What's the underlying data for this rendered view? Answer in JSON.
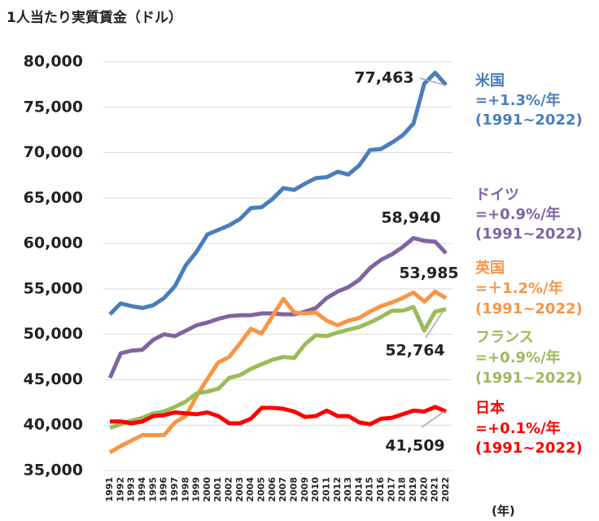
{
  "chart_data": {
    "type": "line",
    "title": "1人当たり実質賃金（ドル）",
    "x_unit": "(年)",
    "categories": [
      "1991",
      "1992",
      "1993",
      "1994",
      "1995",
      "1996",
      "1997",
      "1998",
      "1999",
      "2000",
      "2001",
      "2002",
      "2003",
      "2004",
      "2005",
      "2006",
      "2007",
      "2008",
      "2009",
      "2010",
      "2011",
      "2012",
      "2013",
      "2014",
      "2015",
      "2016",
      "2017",
      "2018",
      "2019",
      "2020",
      "2021",
      "2022"
    ],
    "ylim": [
      35000,
      80000
    ],
    "yticks": [
      {
        "value": 35000,
        "label": "35,000"
      },
      {
        "value": 40000,
        "label": "40,000"
      },
      {
        "value": 45000,
        "label": "45,000"
      },
      {
        "value": 50000,
        "label": "50,000"
      },
      {
        "value": 55000,
        "label": "55,000"
      },
      {
        "value": 60000,
        "label": "60,000"
      },
      {
        "value": 65000,
        "label": "65,000"
      },
      {
        "value": 70000,
        "label": "70,000"
      },
      {
        "value": 75000,
        "label": "75,000"
      },
      {
        "value": 80000,
        "label": "80,000"
      }
    ],
    "grid": true,
    "series": [
      {
        "name": "米国",
        "rate": "=+1.3%/年",
        "period": "(1991~2022)",
        "color": "#4a7ebb",
        "values": [
          52200,
          53400,
          53100,
          52900,
          53200,
          54000,
          55300,
          57600,
          59100,
          61000,
          61500,
          62000,
          62700,
          63900,
          64000,
          64900,
          66100,
          65900,
          66600,
          67200,
          67300,
          67900,
          67600,
          68600,
          70300,
          70400,
          71100,
          71900,
          73200,
          77600,
          78800,
          77463
        ],
        "value_labels": [
          null,
          null,
          null,
          null,
          null,
          null,
          null,
          null,
          null,
          null,
          null,
          null,
          null,
          null,
          null,
          null,
          null,
          null,
          null,
          null,
          null,
          null,
          null,
          null,
          null,
          null,
          null,
          null,
          null,
          null,
          null,
          "77,463"
        ]
      },
      {
        "name": "ドイツ",
        "rate": "=+0.9%/年",
        "period": "(1991~2022)",
        "color": "#8064a2",
        "values": [
          45200,
          47900,
          48200,
          48300,
          49400,
          50000,
          49800,
          50400,
          51000,
          51300,
          51700,
          52000,
          52100,
          52100,
          52300,
          52300,
          52200,
          52200,
          52500,
          52900,
          54000,
          54700,
          55200,
          56000,
          57300,
          58200,
          58800,
          59600,
          60600,
          60300,
          60200,
          58940
        ],
        "value_labels": [
          null,
          null,
          null,
          null,
          null,
          null,
          null,
          null,
          null,
          null,
          null,
          null,
          null,
          null,
          null,
          null,
          null,
          null,
          null,
          null,
          null,
          null,
          null,
          null,
          null,
          null,
          null,
          null,
          null,
          null,
          null,
          "58,940"
        ]
      },
      {
        "name": "英国",
        "rate": "=＋1.2%/年",
        "period": "(1991~2022)",
        "color": "#f79646",
        "values": [
          37000,
          37700,
          38300,
          38900,
          38900,
          38900,
          40300,
          41000,
          43200,
          45100,
          46900,
          47500,
          49000,
          50600,
          50100,
          52000,
          53900,
          52400,
          52300,
          52400,
          51500,
          51000,
          51500,
          51800,
          52500,
          53100,
          53500,
          54000,
          54600,
          53600,
          54700,
          53985
        ],
        "value_labels": [
          null,
          null,
          null,
          null,
          null,
          null,
          null,
          null,
          null,
          null,
          null,
          null,
          null,
          null,
          null,
          null,
          null,
          null,
          null,
          null,
          null,
          null,
          null,
          null,
          null,
          null,
          null,
          null,
          null,
          null,
          null,
          "53,985"
        ]
      },
      {
        "name": "フランス",
        "rate": "=+0.9%/年",
        "period": "(1991~2022)",
        "color": "#9bbb59",
        "values": [
          39700,
          40100,
          40500,
          40800,
          41300,
          41500,
          42000,
          42600,
          43500,
          43700,
          44000,
          45200,
          45500,
          46200,
          46700,
          47200,
          47500,
          47400,
          48900,
          49900,
          49800,
          50200,
          50500,
          50800,
          51300,
          51900,
          52600,
          52600,
          53000,
          50400,
          52500,
          52764
        ],
        "value_labels": [
          null,
          null,
          null,
          null,
          null,
          null,
          null,
          null,
          null,
          null,
          null,
          null,
          null,
          null,
          null,
          null,
          null,
          null,
          null,
          null,
          null,
          null,
          null,
          null,
          null,
          null,
          null,
          null,
          null,
          null,
          null,
          "52,764"
        ]
      },
      {
        "name": "日本",
        "rate": "=+0.1%/年",
        "period": "(1991~2022)",
        "color": "#ff0000",
        "values": [
          40400,
          40400,
          40200,
          40400,
          41000,
          41100,
          41400,
          41300,
          41200,
          41400,
          41000,
          40200,
          40200,
          40700,
          41900,
          41900,
          41800,
          41500,
          40900,
          41000,
          41600,
          41000,
          41000,
          40300,
          40100,
          40700,
          40800,
          41200,
          41600,
          41500,
          42000,
          41509
        ],
        "value_labels": [
          null,
          null,
          null,
          null,
          null,
          null,
          null,
          null,
          null,
          null,
          null,
          null,
          null,
          null,
          null,
          null,
          null,
          null,
          null,
          null,
          null,
          null,
          null,
          null,
          null,
          null,
          null,
          null,
          null,
          null,
          null,
          "41,509"
        ]
      }
    ]
  }
}
